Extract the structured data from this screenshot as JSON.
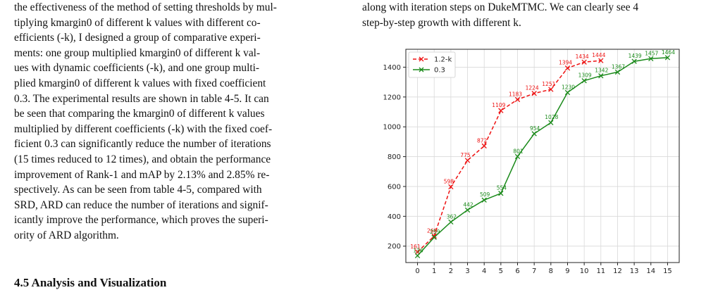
{
  "left_column": {
    "lines": [
      "the effectiveness of the method of setting thresholds by mul-",
      "tiplying kmargin0 of different k values with different co-",
      "efficients (-k), I designed a group of comparative experi-",
      "ments: one group multiplied kmargin0 of different k val-",
      "ues with dynamic coefficients (-k), and one group multi-",
      "plied kmargin0 of different k values with fixed coefficient",
      "0.3. The experimental results are shown in table 4-5. It can",
      "be seen that comparing the kmargin0 of different k values",
      "multiplied by different coefficients (-k) with the fixed coef-",
      "ficient 0.3 can significantly reduce the number of iterations",
      "(15 times reduced to 12 times), and obtain the performance",
      "improvement of Rank-1 and mAP by 2.13% and 2.85% re-",
      "spectively.  As can be seen from table 4-5, compared with",
      "SRD, ARD can reduce the number of iterations and signif-",
      "icantly improve the performance, which proves the superi-",
      "ority of ARD algorithm."
    ],
    "section_heading": "4.5  Analysis and Visualization"
  },
  "right_column": {
    "lines": [
      "along with iteration steps on DukeMTMC. We can clearly see 4",
      "step-by-step growth with different k."
    ]
  },
  "chart_data": {
    "type": "line",
    "title": "",
    "xlabel": "",
    "ylabel": "",
    "xlim": [
      -0.7,
      15.7
    ],
    "ylim": [
      90,
      1520
    ],
    "xticks": [
      0,
      1,
      2,
      3,
      4,
      5,
      6,
      7,
      8,
      9,
      10,
      11,
      12,
      13,
      14,
      15
    ],
    "yticks": [
      200,
      400,
      600,
      800,
      1000,
      1200,
      1400
    ],
    "grid": true,
    "legend_position": "top-left",
    "series": [
      {
        "name": "1.2-k",
        "color": "#ee1111",
        "line_style": "dashed",
        "marker": "x",
        "x": [
          0,
          1,
          2,
          3,
          4,
          5,
          6,
          7,
          8,
          9,
          10,
          11
        ],
        "y": [
          161,
          268,
          598,
          775,
          872,
          1109,
          1183,
          1224,
          1251,
          1394,
          1434,
          1444
        ],
        "labels": [
          "161",
          "268",
          "598",
          "775",
          "872",
          "1109",
          "1183",
          "1224",
          "1251",
          "1394",
          "1434",
          "1444"
        ]
      },
      {
        "name": "0.3",
        "color": "#1a8a1a",
        "line_style": "solid",
        "marker": "x",
        "x": [
          0,
          1,
          2,
          3,
          4,
          5,
          6,
          7,
          8,
          9,
          10,
          11,
          12,
          13,
          14,
          15
        ],
        "y": [
          136,
          259,
          362,
          442,
          509,
          554,
          801,
          954,
          1028,
          1230,
          1309,
          1342,
          1367,
          1439,
          1457,
          1464
        ],
        "labels": [
          "136",
          "259",
          "362",
          "442",
          "509",
          "554",
          "801",
          "954",
          "1028",
          "1230",
          "1309",
          "1342",
          "1367",
          "1439",
          "1457",
          "1464"
        ]
      }
    ]
  }
}
